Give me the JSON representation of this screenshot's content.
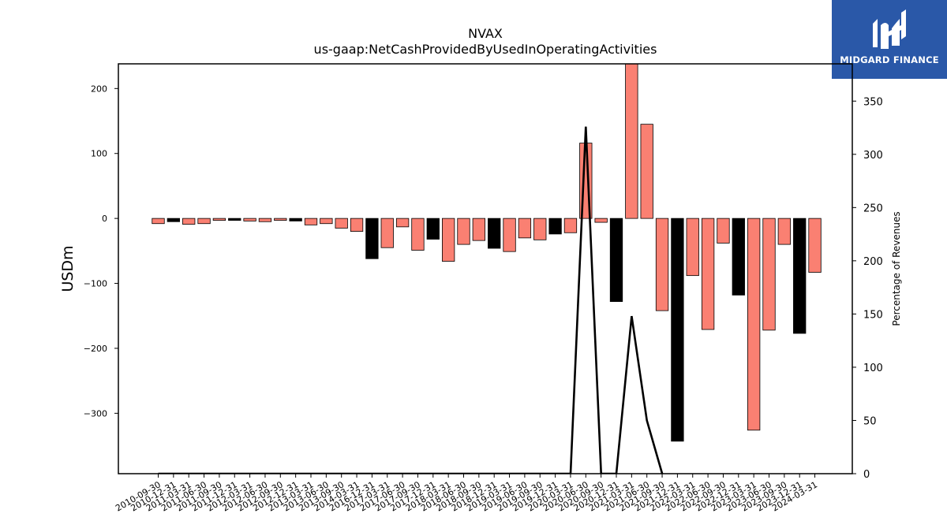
{
  "brand": {
    "name": "MIDGARD FINANCE",
    "logo_icon": "midgard-logo-icon",
    "background": "#2a58a8"
  },
  "chart_data": {
    "type": "bar",
    "title": "NVAX",
    "subtitle": "us-gaap:NetCashProvidedByUsedInOperatingActivities",
    "ylabel": "USDm",
    "y2label": "Percentage of Revenues",
    "ylim": [
      -393,
      238
    ],
    "y2lim": [
      0,
      385
    ],
    "yticks": [
      200,
      100,
      0,
      -100,
      -200,
      -300
    ],
    "y2ticks": [
      0,
      50,
      100,
      150,
      200,
      250,
      300,
      350
    ],
    "colors": {
      "salmon": "#fa8072",
      "black": "#000000",
      "line": "#000000"
    },
    "categories": [
      "2010-09-30",
      "2010-12-31",
      "2011-03-31",
      "2011-06-30",
      "2011-09-30",
      "2011-12-31",
      "2012-03-31",
      "2012-06-30",
      "2012-09-30",
      "2012-12-31",
      "2013-03-31",
      "2013-06-30",
      "2013-09-30",
      "2014-03-31",
      "2016-12-31",
      "2017-03-31",
      "2017-06-30",
      "2017-09-30",
      "2017-12-31",
      "2018-03-31",
      "2018-06-30",
      "2018-09-30",
      "2018-12-31",
      "2019-03-31",
      "2019-06-30",
      "2019-09-30",
      "2019-12-31",
      "2020-03-31",
      "2020-06-30",
      "2020-09-30",
      "2020-12-31",
      "2021-03-31",
      "2021-06-30",
      "2021-09-30",
      "2021-12-31",
      "2022-03-31",
      "2022-06-30",
      "2022-09-30",
      "2022-12-31",
      "2023-03-31",
      "2023-06-30",
      "2023-09-30",
      "2023-12-31",
      "2024-03-31"
    ],
    "values": [
      -8,
      -5,
      -9,
      -8,
      -3,
      -3,
      -4,
      -5,
      -3,
      -4,
      -10,
      -8,
      -15,
      -20,
      -62,
      -45,
      -13,
      -49,
      -32,
      -66,
      -40,
      -34,
      -46,
      -51,
      -30,
      -33,
      -24,
      -22,
      116,
      -6,
      -128,
      240,
      145,
      -142,
      -343,
      -88,
      -171,
      -38,
      -118,
      -326,
      -172,
      -40,
      -177,
      -83
    ],
    "bar_colors": [
      "salmon",
      "black",
      "salmon",
      "salmon",
      "salmon",
      "black",
      "salmon",
      "salmon",
      "salmon",
      "black",
      "salmon",
      "salmon",
      "salmon",
      "salmon",
      "black",
      "salmon",
      "salmon",
      "salmon",
      "black",
      "salmon",
      "salmon",
      "salmon",
      "black",
      "salmon",
      "salmon",
      "salmon",
      "black",
      "salmon",
      "salmon",
      "salmon",
      "black",
      "salmon",
      "salmon",
      "salmon",
      "black",
      "salmon",
      "salmon",
      "salmon",
      "black",
      "salmon",
      "salmon",
      "salmon",
      "black",
      "salmon"
    ],
    "line_series": {
      "name": "Percentage of Revenues",
      "points": [
        [
          "2010-09-30",
          0
        ],
        [
          "2010-12-31",
          0
        ],
        [
          "2020-03-31",
          0
        ],
        [
          "2020-06-30",
          326
        ],
        [
          "2020-09-30",
          0
        ],
        [
          "2020-12-31",
          0
        ],
        [
          "2021-03-31",
          148
        ],
        [
          "2021-06-30",
          50
        ],
        [
          "2021-09-30",
          0
        ]
      ]
    }
  }
}
